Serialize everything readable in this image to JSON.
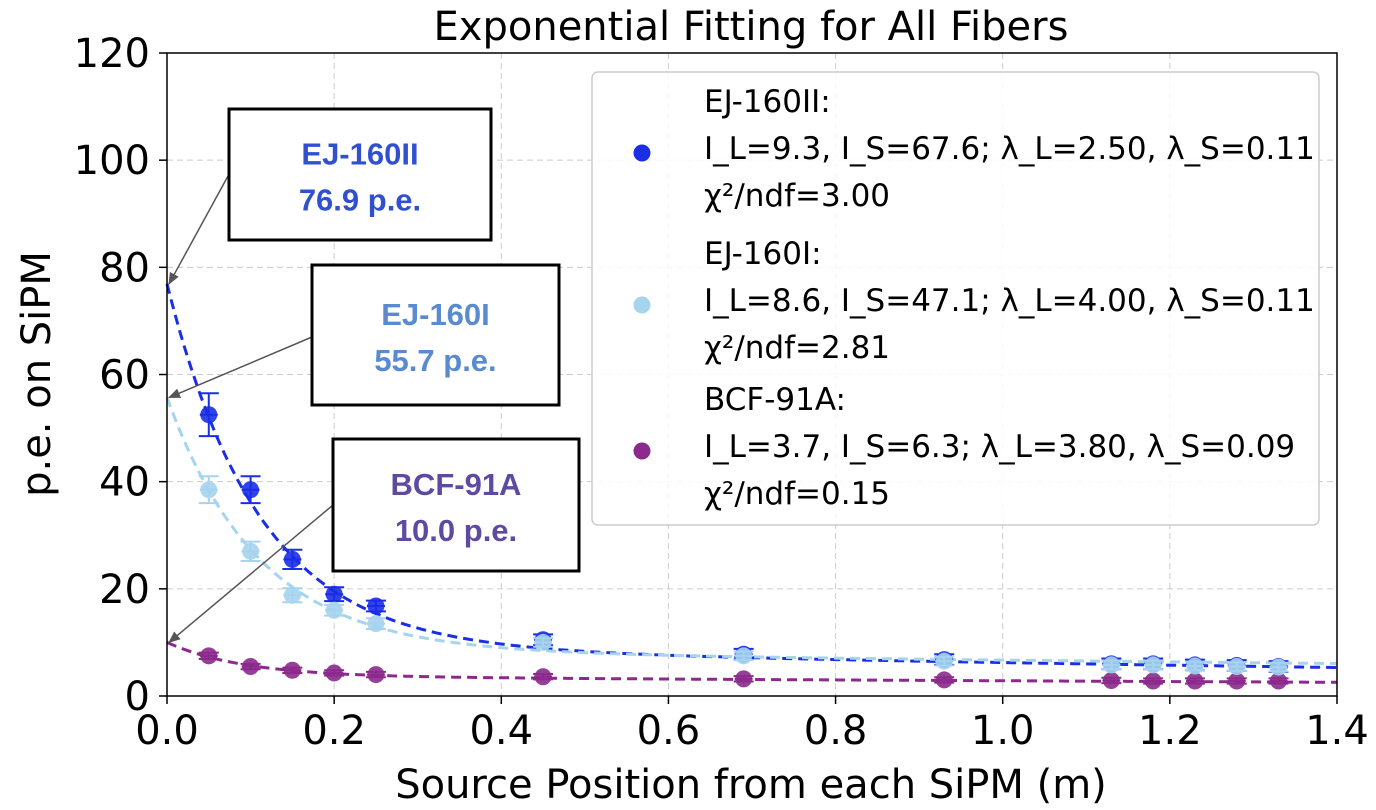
{
  "chart_data": {
    "type": "scatter",
    "title": "Exponential Fitting for All Fibers",
    "xlabel": "Source Position from each SiPM (m)",
    "ylabel": "p.e. on SiPM",
    "xlim": [
      0.0,
      1.4
    ],
    "ylim": [
      0,
      120
    ],
    "xticks": [
      "0.0",
      "0.2",
      "0.4",
      "0.6",
      "0.8",
      "1.0",
      "1.2",
      "1.4"
    ],
    "yticks": [
      "0",
      "20",
      "40",
      "60",
      "80",
      "100",
      "120"
    ],
    "grid": true,
    "legend_position": "top-right",
    "series": [
      {
        "name": "EJ-160II",
        "color": "#1a2ee6",
        "fit": {
          "I_L": 9.3,
          "I_S": 67.6,
          "lambda_L": 2.5,
          "lambda_S": 0.11
        },
        "legend_lines": [
          "EJ-160II:",
          "I_L=9.3, I_S=67.6; λ_L=2.50, λ_S=0.11",
          "χ²/ndf=3.00"
        ],
        "callout": {
          "name": "EJ-160II",
          "value": "76.9 p.e.",
          "x": 0.0,
          "y": 76.9
        },
        "points": [
          {
            "x": 0.05,
            "y": 52.5,
            "err": 4.0
          },
          {
            "x": 0.1,
            "y": 38.5,
            "err": 2.5
          },
          {
            "x": 0.15,
            "y": 25.5,
            "err": 1.8
          },
          {
            "x": 0.2,
            "y": 19.0,
            "err": 1.3
          },
          {
            "x": 0.25,
            "y": 16.8,
            "err": 1.0
          },
          {
            "x": 0.45,
            "y": 10.5,
            "err": 1.0
          },
          {
            "x": 0.69,
            "y": 7.8,
            "err": 1.0
          },
          {
            "x": 0.93,
            "y": 6.8,
            "err": 1.0
          },
          {
            "x": 1.13,
            "y": 6.0,
            "err": 1.0
          },
          {
            "x": 1.18,
            "y": 6.0,
            "err": 1.0
          },
          {
            "x": 1.23,
            "y": 5.8,
            "err": 1.0
          },
          {
            "x": 1.28,
            "y": 5.7,
            "err": 1.0
          },
          {
            "x": 1.33,
            "y": 5.5,
            "err": 1.0
          }
        ]
      },
      {
        "name": "EJ-160I",
        "color": "#a6d4ee",
        "fit": {
          "I_L": 8.6,
          "I_S": 47.1,
          "lambda_L": 4.0,
          "lambda_S": 0.11
        },
        "legend_lines": [
          "EJ-160I:",
          "I_L=8.6, I_S=47.1; λ_L=4.00, λ_S=0.11",
          "χ²/ndf=2.81"
        ],
        "callout": {
          "name": "EJ-160I",
          "value": "55.7 p.e.",
          "x": 0.0,
          "y": 55.7
        },
        "points": [
          {
            "x": 0.05,
            "y": 38.5,
            "err": 2.5
          },
          {
            "x": 0.1,
            "y": 27.0,
            "err": 1.8
          },
          {
            "x": 0.15,
            "y": 18.8,
            "err": 1.3
          },
          {
            "x": 0.2,
            "y": 16.0,
            "err": 1.0
          },
          {
            "x": 0.25,
            "y": 13.5,
            "err": 1.0
          },
          {
            "x": 0.45,
            "y": 10.0,
            "err": 0.8
          },
          {
            "x": 0.69,
            "y": 7.5,
            "err": 0.8
          },
          {
            "x": 0.93,
            "y": 6.5,
            "err": 0.8
          },
          {
            "x": 1.13,
            "y": 5.8,
            "err": 0.8
          },
          {
            "x": 1.18,
            "y": 5.8,
            "err": 0.8
          },
          {
            "x": 1.23,
            "y": 5.6,
            "err": 0.8
          },
          {
            "x": 1.28,
            "y": 5.5,
            "err": 0.8
          },
          {
            "x": 1.33,
            "y": 5.4,
            "err": 0.8
          }
        ]
      },
      {
        "name": "BCF-91A",
        "color": "#8b2a8c",
        "fit": {
          "I_L": 3.7,
          "I_S": 6.3,
          "lambda_L": 3.8,
          "lambda_S": 0.09
        },
        "legend_lines": [
          "BCF-91A:",
          "I_L=3.7, I_S=6.3; λ_L=3.80, λ_S=0.09",
          "χ²/ndf=0.15"
        ],
        "callout": {
          "name": "BCF-91A",
          "value": "10.0 p.e.",
          "x": 0.0,
          "y": 10.0
        },
        "points": [
          {
            "x": 0.05,
            "y": 7.5,
            "err": 0.6
          },
          {
            "x": 0.1,
            "y": 5.5,
            "err": 0.5
          },
          {
            "x": 0.15,
            "y": 4.8,
            "err": 0.5
          },
          {
            "x": 0.2,
            "y": 4.3,
            "err": 0.5
          },
          {
            "x": 0.25,
            "y": 4.0,
            "err": 0.5
          },
          {
            "x": 0.45,
            "y": 3.6,
            "err": 0.5
          },
          {
            "x": 0.69,
            "y": 3.2,
            "err": 0.5
          },
          {
            "x": 0.93,
            "y": 3.0,
            "err": 0.5
          },
          {
            "x": 1.13,
            "y": 2.9,
            "err": 0.5
          },
          {
            "x": 1.18,
            "y": 2.8,
            "err": 0.5
          },
          {
            "x": 1.23,
            "y": 2.8,
            "err": 0.5
          },
          {
            "x": 1.28,
            "y": 2.8,
            "err": 0.5
          },
          {
            "x": 1.33,
            "y": 2.8,
            "err": 0.5
          }
        ]
      }
    ]
  },
  "callout_colors": [
    "#3050d0",
    "#5a8ad0",
    "#5e4aa0"
  ]
}
